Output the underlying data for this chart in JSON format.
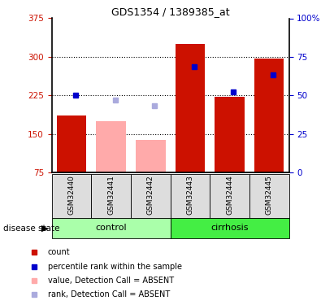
{
  "title": "GDS1354 / 1389385_at",
  "samples": [
    "GSM32440",
    "GSM32441",
    "GSM32442",
    "GSM32443",
    "GSM32444",
    "GSM32445"
  ],
  "groups": [
    "control",
    "control",
    "control",
    "cirrhosis",
    "cirrhosis",
    "cirrhosis"
  ],
  "bar_values": [
    185,
    175,
    138,
    325,
    222,
    297
  ],
  "bar_absent": [
    false,
    true,
    true,
    false,
    false,
    false
  ],
  "percentile_values": [
    225,
    null,
    null,
    280,
    232,
    265
  ],
  "rank_absent_values": [
    null,
    215,
    205,
    null,
    null,
    null
  ],
  "ylim_left": [
    75,
    375
  ],
  "ylim_right": [
    0,
    100
  ],
  "yticks_left": [
    75,
    150,
    225,
    300,
    375
  ],
  "yticks_right": [
    0,
    25,
    50,
    75,
    100
  ],
  "color_red": "#cc1100",
  "color_blue": "#0000cc",
  "color_pink": "#ffaaaa",
  "color_lightblue": "#aaaadd",
  "color_control_bg": "#aaffaa",
  "color_cirrhosis_bg": "#44ee44",
  "color_sample_bg": "#dddddd",
  "group_label": "disease state",
  "legend_items": [
    {
      "color": "#cc1100",
      "label": "count"
    },
    {
      "color": "#0000cc",
      "label": "percentile rank within the sample"
    },
    {
      "color": "#ffaaaa",
      "label": "value, Detection Call = ABSENT"
    },
    {
      "color": "#aaaadd",
      "label": "rank, Detection Call = ABSENT"
    }
  ]
}
